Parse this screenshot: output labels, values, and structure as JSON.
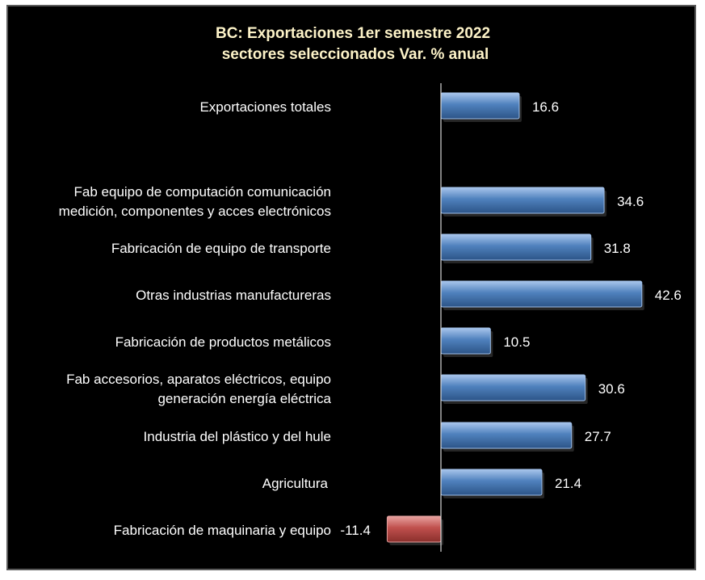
{
  "chart_data": {
    "type": "bar",
    "orientation": "horizontal",
    "title": [
      "BC: Exportaciones 1er semestre 2022",
      "sectores seleccionados Var. % anual"
    ],
    "categories": [
      [
        "Exportaciones totales"
      ],
      [
        "Fab equipo de computación comunicación",
        "medición, componentes y acces electrónicos"
      ],
      [
        "Fabricación de equipo de transporte"
      ],
      [
        "Otras industrias manufactureras"
      ],
      [
        "Fabricación de productos metálicos"
      ],
      [
        "Fab accesorios, aparatos eléctricos, equipo",
        "generación energía eléctrica"
      ],
      [
        "Industria del plástico y del hule"
      ],
      [
        "Agricultura"
      ],
      [
        "Fabricación de maquinaria y equipo"
      ]
    ],
    "values": [
      16.6,
      34.6,
      31.8,
      42.6,
      10.5,
      30.6,
      27.7,
      21.4,
      -11.4
    ],
    "value_labels": [
      "16.6",
      "34.6",
      "31.8",
      "42.6",
      "10.5",
      "30.6",
      "27.7",
      "21.4",
      "-11.4"
    ],
    "positive_color": "#4f81bd",
    "negative_color": "#c0504d",
    "background_color": "#000000",
    "title_color": "#fdf3c8",
    "grid": false,
    "legend": "none"
  }
}
